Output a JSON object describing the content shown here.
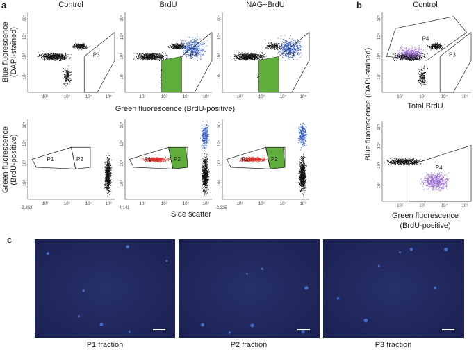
{
  "panel_labels": [
    "a",
    "b",
    "c"
  ],
  "panel_a": {
    "columns": [
      "Control",
      "BrdU",
      "NAG+BrdU"
    ],
    "top_y_label": [
      "Blue fluorescence",
      "(DAPI-stained)"
    ],
    "top_x_label": "Green fluorescence (BrdU-positive)",
    "bottom_y_label": [
      "Green fluorescence",
      "(BrdU-positive)"
    ],
    "bottom_x_label": "Side scatter",
    "top_gate": "P3",
    "bottom_gates": [
      "P1",
      "P2"
    ],
    "bottom_min_ticks": [
      "-3,862",
      "-4,141",
      "-3,225"
    ]
  },
  "panel_b": {
    "title": "Control",
    "y_label": [
      "Blue fluorescence (DAPI-stained)"
    ],
    "top_x_label": "Total BrdU",
    "bottom_x_label": [
      "Green fluorescence",
      "(BrdU-positive)"
    ],
    "gates": [
      "P4",
      "P3"
    ]
  },
  "log_ticks": [
    "10²",
    "10³",
    "10⁴",
    "10⁵"
  ],
  "panel_c": {
    "captions": [
      "P1 fraction",
      "P2 fraction",
      "P3 fraction"
    ]
  }
}
